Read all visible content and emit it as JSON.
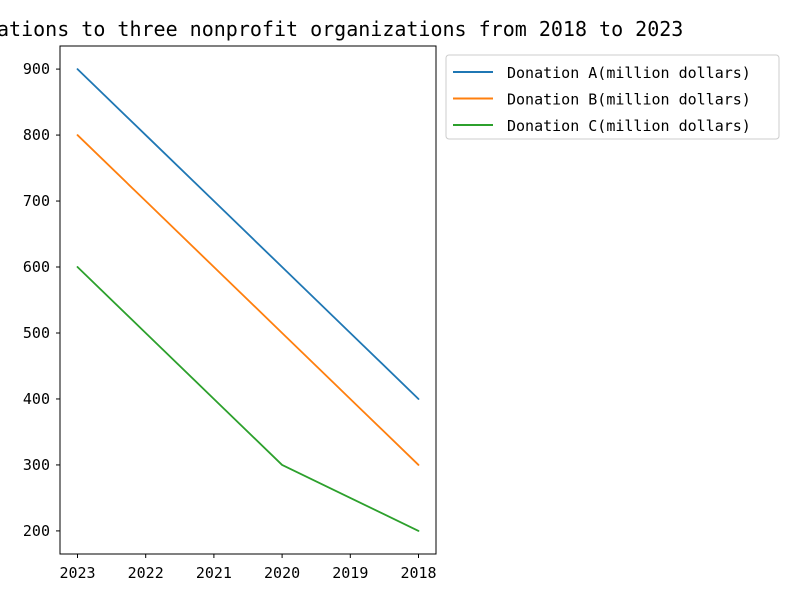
{
  "chart_data": {
    "type": "line",
    "title": "ations to three nonprofit organizations from 2018 to 2023",
    "xlabel": "",
    "ylabel": "",
    "categories": [
      "2023",
      "2022",
      "2021",
      "2020",
      "2019",
      "2018"
    ],
    "ylim": [
      165,
      935
    ],
    "yticks": [
      200,
      300,
      400,
      500,
      600,
      700,
      800,
      900
    ],
    "grid": false,
    "legend_position": "outside-top-right",
    "series": [
      {
        "name": "Donation A(million dollars)",
        "color": "#1f77b4",
        "values": [
          900,
          800,
          700,
          600,
          500,
          400
        ]
      },
      {
        "name": "Donation B(million dollars)",
        "color": "#ff7f0e",
        "values": [
          800,
          700,
          600,
          500,
          400,
          300
        ]
      },
      {
        "name": "Donation C(million dollars)",
        "color": "#2ca02c",
        "values": [
          600,
          500,
          400,
          300,
          250,
          200
        ]
      }
    ]
  }
}
